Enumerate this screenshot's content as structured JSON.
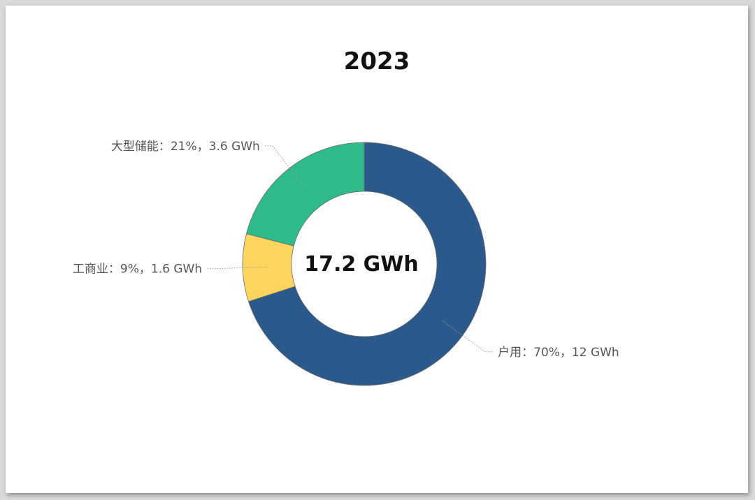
{
  "chart_data": {
    "type": "pie",
    "variant": "donut",
    "title": "2023",
    "center_label": "17.2 GWh",
    "slices": [
      {
        "name": "户用",
        "percent": 70,
        "value": 12,
        "unit": "GWh",
        "label": "户用：70%，12 GWh",
        "color": "#2b598c"
      },
      {
        "name": "工商业",
        "percent": 9,
        "value": 1.6,
        "unit": "GWh",
        "label": "工商业：9%，1.6 GWh",
        "color": "#fcd55e"
      },
      {
        "name": "大型储能",
        "percent": 21,
        "value": 3.6,
        "unit": "GWh",
        "label": "大型储能：21%，3.6 GWh",
        "color": "#2fba8a"
      }
    ],
    "legend": "none"
  }
}
